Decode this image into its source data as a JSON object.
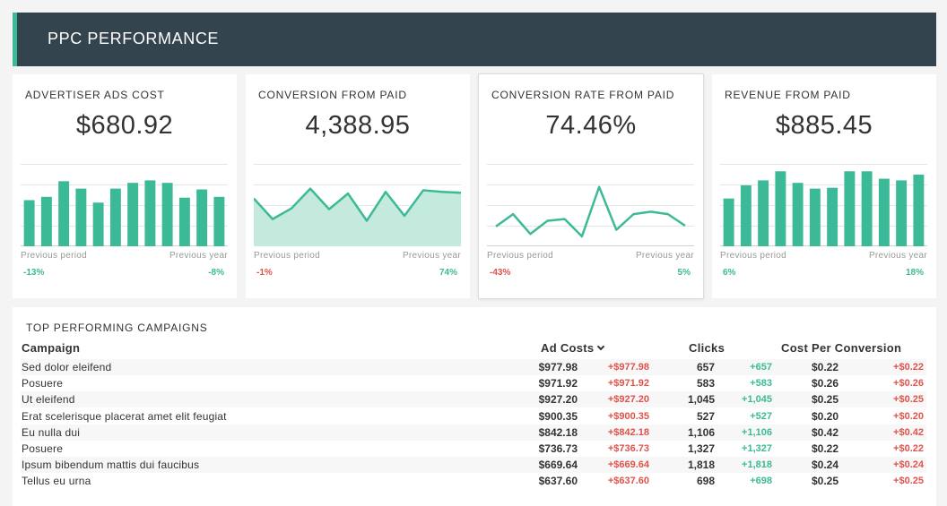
{
  "header": {
    "title": "PPC PERFORMANCE"
  },
  "kpis": [
    {
      "title": "ADVERTISER ADS COST",
      "value": "$680.92",
      "chart_type": "bar",
      "values": [
        56,
        60,
        79,
        70,
        53,
        70,
        77,
        80,
        77,
        59,
        69,
        60
      ],
      "prev_period_label": "Previous period",
      "prev_year_label": "Previous year",
      "prev_period_change": "-13%",
      "prev_year_change": "-8%",
      "prev_period_status": "positive",
      "prev_year_status": "positive"
    },
    {
      "title": "CONVERSION FROM PAID",
      "value": "4,388.95",
      "chart_type": "area",
      "values": [
        58,
        33,
        46,
        70,
        45,
        64,
        31,
        66,
        37,
        68,
        66,
        65
      ],
      "prev_period_label": "Previous period",
      "prev_year_label": "Previous year",
      "prev_period_change": "-1%",
      "prev_year_change": "74%",
      "prev_period_status": "negative",
      "prev_year_status": "positive"
    },
    {
      "title": "CONVERSION RATE FROM PAID",
      "value": "74.46%",
      "chart_type": "line",
      "values": [
        24,
        39,
        15,
        31,
        33,
        12,
        72,
        20,
        39,
        42,
        39,
        25
      ],
      "prev_period_label": "Previous period",
      "prev_year_label": "Previous year",
      "prev_period_change": "-43%",
      "prev_year_change": "5%",
      "prev_period_status": "negative",
      "prev_year_status": "positive"
    },
    {
      "title": "REVENUE FROM PAID",
      "value": "$885.45",
      "chart_type": "bar",
      "values": [
        58,
        74,
        80,
        91,
        77,
        70,
        71,
        91,
        91,
        82,
        80,
        87
      ],
      "prev_period_label": "Previous period",
      "prev_year_label": "Previous year",
      "prev_period_change": "6%",
      "prev_year_change": "18%",
      "prev_period_status": "positive",
      "prev_year_status": "positive"
    }
  ],
  "campaigns": {
    "title": "TOP PERFORMING CAMPAIGNS",
    "columns": {
      "campaign": "Campaign",
      "ad_costs": "Ad Costs",
      "clicks": "Clicks",
      "cpc": "Cost Per Conversion"
    },
    "rows": [
      {
        "name": "Sed dolor eleifend",
        "ad_cost": "$977.98",
        "ad_cost_delta": "+$977.98",
        "clicks": "657",
        "clicks_delta": "+657",
        "cpc": "$0.22",
        "cpc_delta": "+$0.22"
      },
      {
        "name": "Posuere",
        "ad_cost": "$971.92",
        "ad_cost_delta": "+$971.92",
        "clicks": "583",
        "clicks_delta": "+583",
        "cpc": "$0.26",
        "cpc_delta": "+$0.26"
      },
      {
        "name": "Ut eleifend",
        "ad_cost": "$927.20",
        "ad_cost_delta": "+$927.20",
        "clicks": "1,045",
        "clicks_delta": "+1,045",
        "cpc": "$0.25",
        "cpc_delta": "+$0.25"
      },
      {
        "name": "Erat scelerisque placerat amet elit feugiat",
        "ad_cost": "$900.35",
        "ad_cost_delta": "+$900.35",
        "clicks": "527",
        "clicks_delta": "+527",
        "cpc": "$0.20",
        "cpc_delta": "+$0.20"
      },
      {
        "name": "Eu nulla dui",
        "ad_cost": "$842.18",
        "ad_cost_delta": "+$842.18",
        "clicks": "1,106",
        "clicks_delta": "+1,106",
        "cpc": "$0.42",
        "cpc_delta": "+$0.42"
      },
      {
        "name": "Posuere",
        "ad_cost": "$736.73",
        "ad_cost_delta": "+$736.73",
        "clicks": "1,327",
        "clicks_delta": "+1,327",
        "cpc": "$0.22",
        "cpc_delta": "+$0.22"
      },
      {
        "name": "Ipsum bibendum mattis dui faucibus",
        "ad_cost": "$669.64",
        "ad_cost_delta": "+$669.64",
        "clicks": "1,818",
        "clicks_delta": "+1,818",
        "cpc": "$0.24",
        "cpc_delta": "+$0.24"
      },
      {
        "name": "Tellus eu urna",
        "ad_cost": "$637.60",
        "ad_cost_delta": "+$637.60",
        "clicks": "698",
        "clicks_delta": "+698",
        "cpc": "$0.25",
        "cpc_delta": "+$0.25"
      }
    ]
  },
  "colors": {
    "accent": "#3cba97",
    "header_bg": "#34444e",
    "negative": "#e0534a",
    "area_fill": "#c3eadd"
  },
  "icons": {
    "sort": "chevron-down-icon"
  }
}
